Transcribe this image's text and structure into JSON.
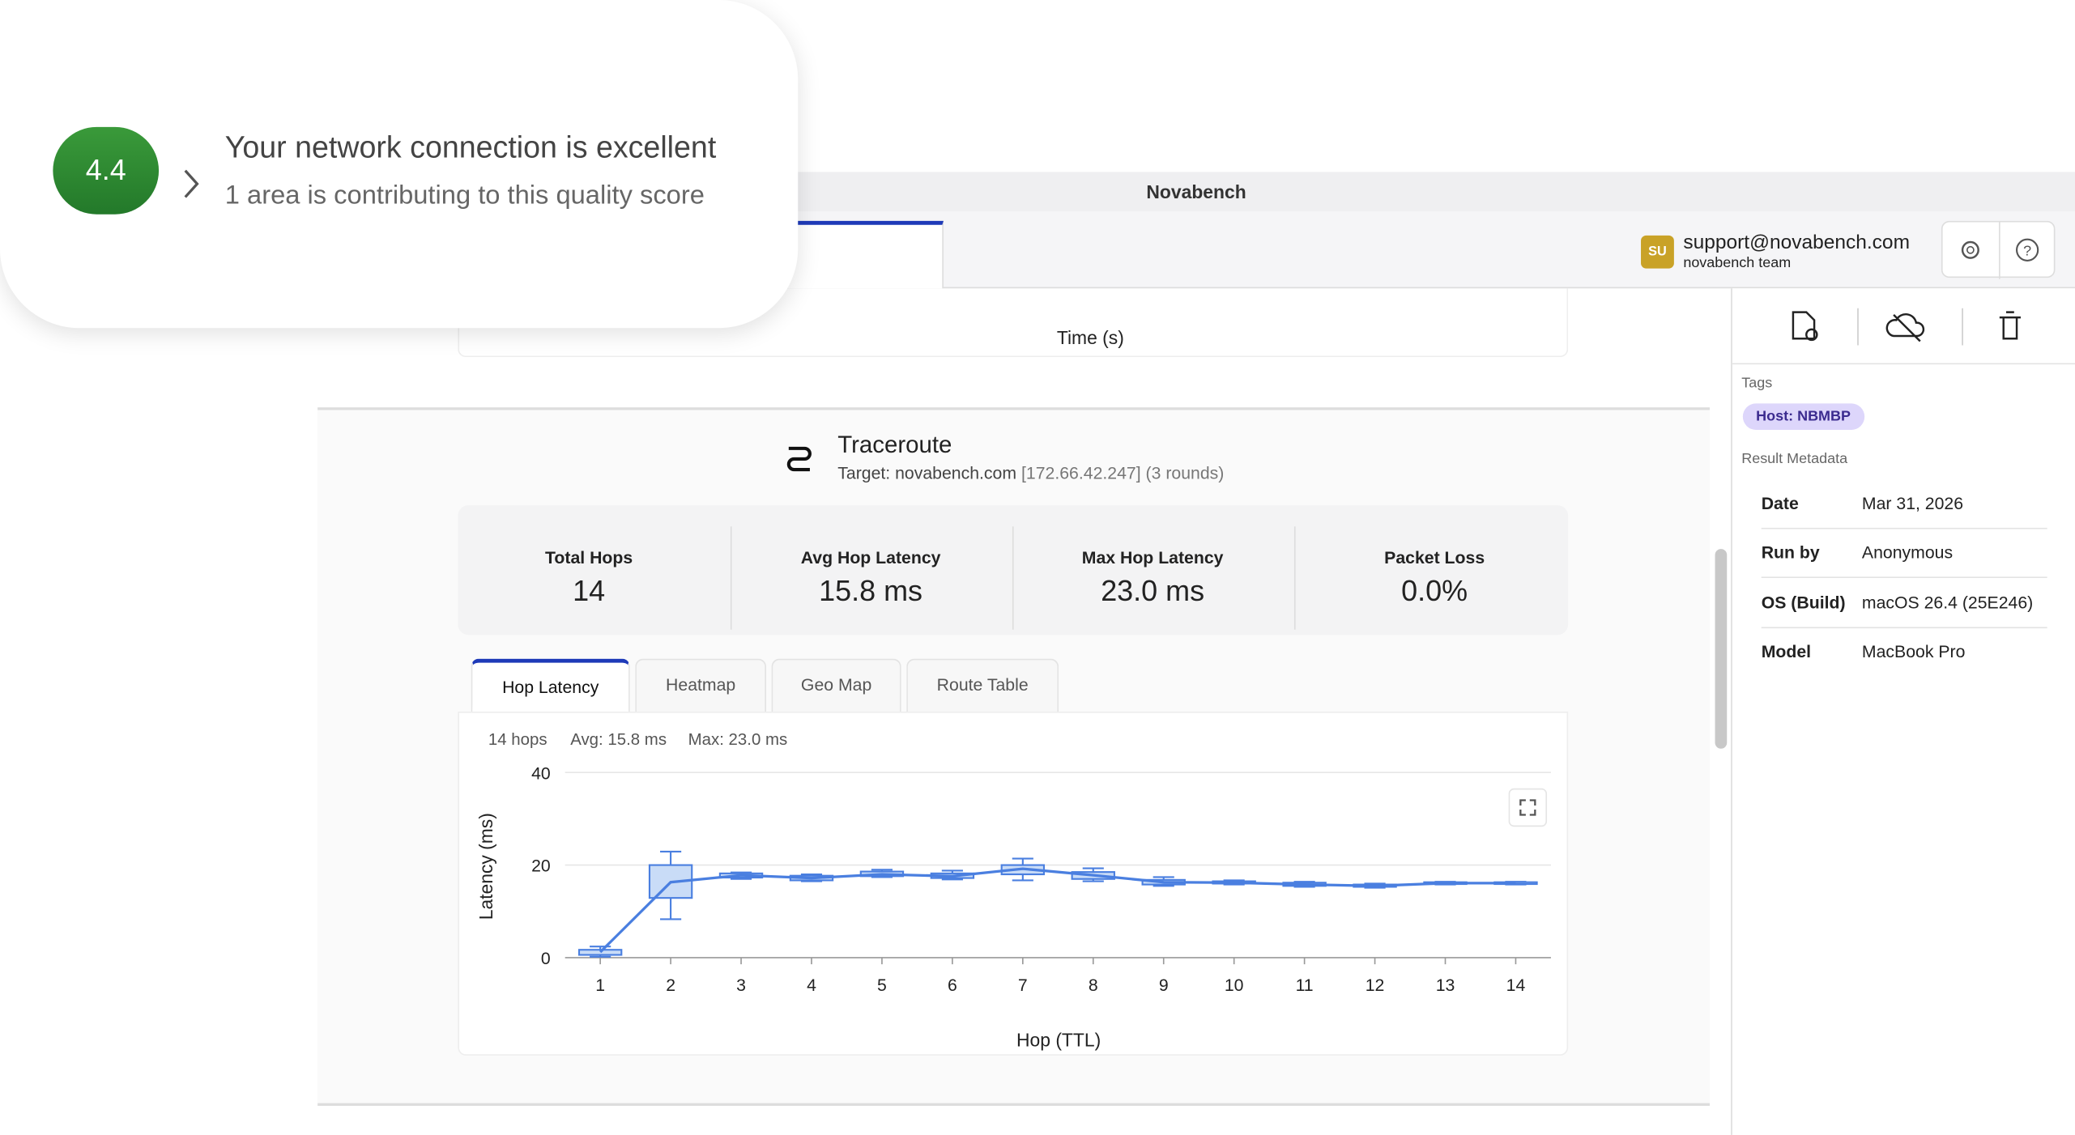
{
  "popup": {
    "score": "4.4",
    "title": "Your network connection is excellent",
    "subtitle": "1 area is contributing to this quality score"
  },
  "window": {
    "title": "Novabench"
  },
  "user": {
    "initials": "SU",
    "email": "support@novabench.com",
    "team": "novabench team"
  },
  "previous_chart": {
    "x_label": "Time (s)"
  },
  "traceroute": {
    "title": "Traceroute",
    "target": "Target: novabench.com",
    "ip": "[172.66.42.247]",
    "rounds": "(3 rounds)",
    "stats": [
      {
        "label": "Total Hops",
        "value": "14"
      },
      {
        "label": "Avg Hop Latency",
        "value": "15.8 ms"
      },
      {
        "label": "Max Hop Latency",
        "value": "23.0 ms"
      },
      {
        "label": "Packet Loss",
        "value": "0.0%"
      }
    ],
    "tabs": [
      "Hop Latency",
      "Heatmap",
      "Geo Map",
      "Route Table"
    ],
    "summary": [
      "14 hops",
      "Avg: 15.8 ms",
      "Max: 23.0 ms"
    ]
  },
  "chart_data": {
    "type": "box",
    "x_label": "Hop (TTL)",
    "y_label": "Latency (ms)",
    "color": "#4a7fe0",
    "grid": true,
    "x": [
      1,
      2,
      3,
      4,
      5,
      6,
      7,
      8,
      9,
      10,
      11,
      12,
      13,
      14
    ],
    "min": [
      0.2,
      8.3,
      17,
      16.5,
      17.4,
      16.9,
      16.7,
      16.5,
      15.5,
      15.8,
      15.3,
      15.1,
      15.8,
      15.8
    ],
    "q1": [
      0.6,
      12.9,
      17.3,
      16.7,
      17.6,
      17.2,
      18,
      17,
      15.8,
      16,
      15.5,
      15.3,
      15.9,
      15.9
    ],
    "q3": [
      1.7,
      20,
      18.2,
      17.7,
      18.6,
      18.2,
      20,
      18.5,
      16.8,
      16.5,
      16.2,
      15.8,
      16.3,
      16.3
    ],
    "max": [
      2.4,
      22.9,
      18.4,
      18,
      19,
      18.8,
      21.4,
      19.3,
      17.4,
      16.7,
      16.4,
      16,
      16.4,
      16.4
    ],
    "mean": [
      1.2,
      16.3,
      17.8,
      17.2,
      18,
      17.6,
      19.2,
      17.8,
      16.3,
      16.2,
      15.8,
      15.5,
      16.1,
      16.1
    ],
    "xlim": [
      0.5,
      14.5
    ],
    "xticks": [
      1,
      2,
      3,
      4,
      5,
      6,
      7,
      8,
      9,
      10,
      11,
      12,
      13,
      14
    ],
    "ylim": [
      0,
      40
    ],
    "yticks": [
      0,
      20,
      40
    ]
  },
  "sidebar": {
    "tags_heading": "Tags",
    "tags": [
      "Host: NBMBP"
    ],
    "metadata_heading": "Result Metadata",
    "metadata": [
      [
        "Date",
        "Mar 31, 2026"
      ],
      [
        "Run by",
        "Anonymous"
      ],
      [
        "OS (Build)",
        "macOS 26.4 (25E246)"
      ],
      [
        "Model",
        "MacBook Pro"
      ]
    ]
  }
}
